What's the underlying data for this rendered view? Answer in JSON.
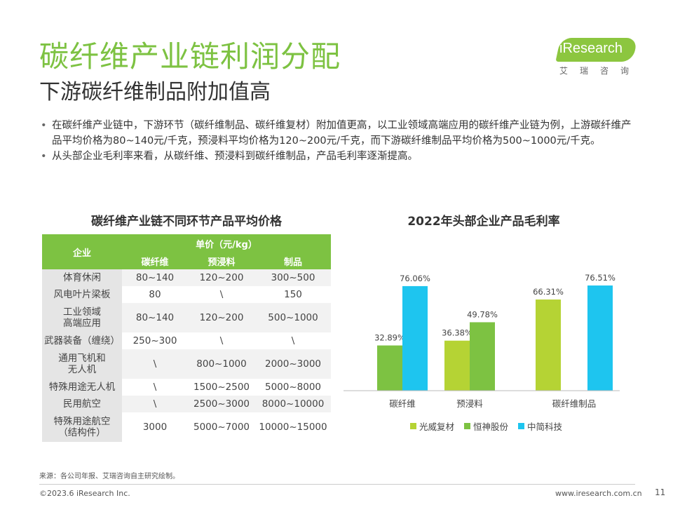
{
  "header": {
    "title": "碳纤维产业链利润分配",
    "subtitle": "下游碳纤维制品附加值高"
  },
  "logo": {
    "brand": "iResearch",
    "sub": "艾瑞咨询"
  },
  "bullets": [
    "在碳纤维产业链中，下游环节（碳纤维制品、碳纤维复材）附加值更高，以工业领域高端应用的碳纤维产业链为例，上游碳纤维产品平均价格为80~140元/千克，预浸料平均价格为120~200元/千克，而下游碳纤维制品平均价格为500~1000元/千克。",
    "从头部企业毛利率来看，从碳纤维、预浸料到碳纤维制品，产品毛利率逐渐提高。"
  ],
  "price_table": {
    "title": "碳纤维产业链不同环节产品平均价格",
    "header_company": "企业",
    "header_price": "单价（元/kg）",
    "columns": [
      "碳纤维",
      "预浸料",
      "制品"
    ],
    "rows": [
      {
        "name": "体育休闲",
        "values": [
          "80~140",
          "120~200",
          "300~500"
        ]
      },
      {
        "name": "风电叶片梁板",
        "values": [
          "80",
          "\\",
          "150"
        ]
      },
      {
        "name": "工业领域\n高端应用",
        "values": [
          "80~140",
          "120~200",
          "500~1000"
        ]
      },
      {
        "name": "武器装备（缠绕）",
        "values": [
          "250~300",
          "\\",
          "\\"
        ]
      },
      {
        "name": "通用飞机和\n无人机",
        "values": [
          "\\",
          "800~1000",
          "2000~3000"
        ]
      },
      {
        "name": "特殊用途无人机",
        "values": [
          "\\",
          "1500~2500",
          "5000~8000"
        ]
      },
      {
        "name": "民用航空",
        "values": [
          "\\",
          "2500~3000",
          "8000~10000"
        ]
      },
      {
        "name": "特殊用途航空\n（结构件）",
        "values": [
          "3000",
          "5000~7000",
          "10000~15000"
        ]
      }
    ]
  },
  "chart_data": {
    "type": "bar",
    "title": "2022年头部企业产品毛利率",
    "categories": [
      "碳纤维",
      "预浸料",
      "碳纤维制品"
    ],
    "series": [
      {
        "name": "光威复材",
        "color": "#b5d334",
        "values": [
          null,
          36.38,
          66.31
        ],
        "labels": [
          null,
          "36.38%",
          "66.31%"
        ]
      },
      {
        "name": "恒神股份",
        "color": "#7dc242",
        "values": [
          32.89,
          49.78,
          null
        ],
        "labels": [
          "32.89%",
          "49.78%",
          null
        ]
      },
      {
        "name": "中简科技",
        "color": "#1ec5ef",
        "values": [
          76.06,
          null,
          76.51
        ],
        "labels": [
          "76.06%",
          null,
          "76.51%"
        ]
      }
    ],
    "ylim": [
      0,
      100
    ],
    "grid": false,
    "legend": "bottom"
  },
  "footer": {
    "source": "来源：各公司年报、艾瑞咨询自主研究绘制。",
    "copyright": "©2023.6 iResearch Inc.",
    "website": "www.iresearch.com.cn",
    "page": "11"
  }
}
